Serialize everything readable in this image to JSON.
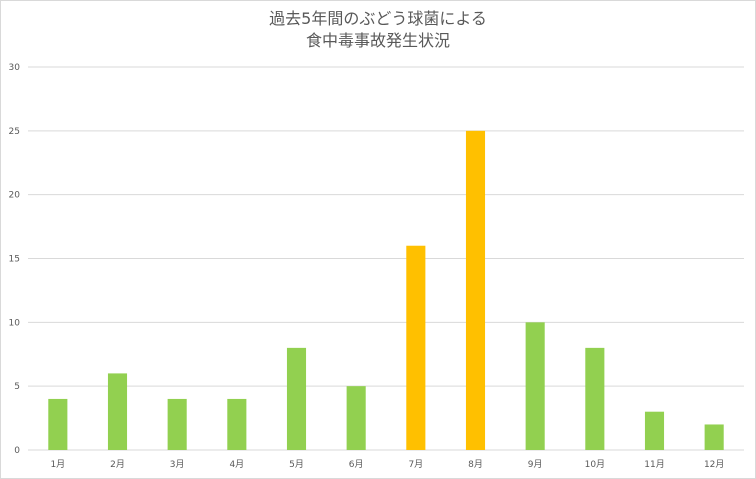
{
  "chart_data": {
    "type": "bar",
    "title_lines": [
      "過去5年間のぶどう球菌による",
      "食中毒事故発生状況"
    ],
    "categories": [
      "1月",
      "2月",
      "3月",
      "4月",
      "5月",
      "6月",
      "7月",
      "8月",
      "9月",
      "10月",
      "11月",
      "12月"
    ],
    "values": [
      4,
      6,
      4,
      4,
      8,
      5,
      16,
      25,
      10,
      8,
      3,
      2
    ],
    "ylim": [
      0,
      30
    ],
    "yticks": [
      0,
      5,
      10,
      15,
      20,
      25,
      30
    ],
    "grid": true,
    "colors": {
      "default": "#92d050",
      "highlight": "#ffc000",
      "highlight_categories": [
        "7月",
        "8月"
      ]
    }
  }
}
